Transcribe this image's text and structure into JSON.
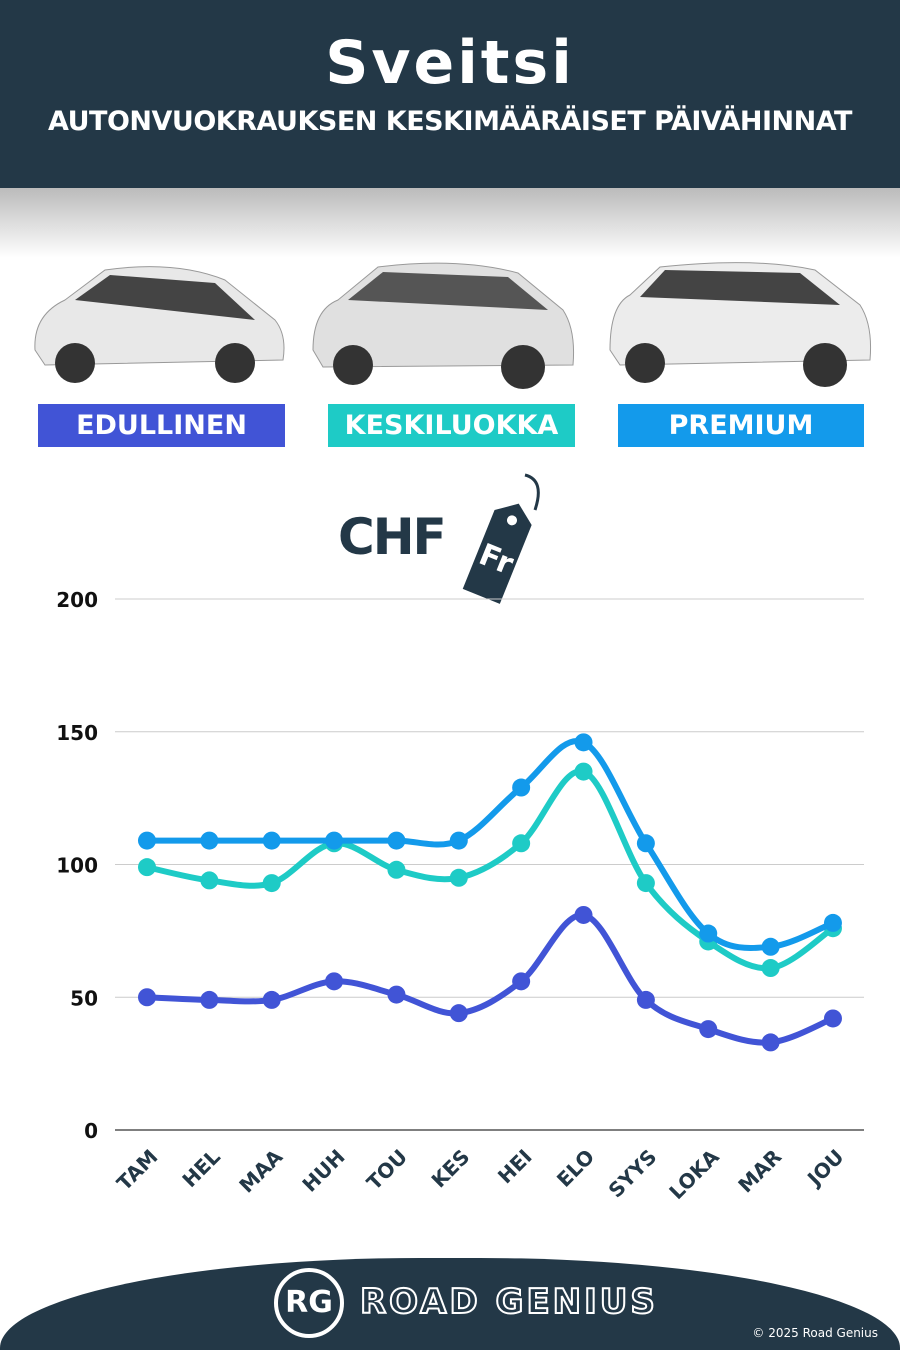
{
  "header": {
    "title": "Sveitsi",
    "subtitle": "AUTONVUOKRAUKSEN KESKIMÄÄRÄISET PÄIVÄHINNAT"
  },
  "currency": {
    "label": "CHF",
    "tag": "Fr"
  },
  "footer": {
    "brand": "ROAD GENIUS",
    "logo": "RG",
    "copyright": "© 2025 Road Genius"
  },
  "chart_data": {
    "type": "line",
    "categories": [
      "TAM",
      "HEL",
      "MAA",
      "HUH",
      "TOU",
      "KES",
      "HEI",
      "ELO",
      "SYYS",
      "LOKA",
      "MAR",
      "JOU"
    ],
    "ylim": [
      0,
      200
    ],
    "yticks": [
      0,
      50,
      100,
      150,
      200
    ],
    "grid": true,
    "legend": "top",
    "series": [
      {
        "name": "EDULLINEN",
        "color": "#4154d6",
        "values": [
          50,
          49,
          49,
          56,
          51,
          44,
          56,
          81,
          49,
          38,
          33,
          42
        ]
      },
      {
        "name": "KESKILUOKKA",
        "color": "#1ecbc6",
        "values": [
          99,
          94,
          93,
          108,
          98,
          95,
          108,
          135,
          93,
          71,
          61,
          76
        ]
      },
      {
        "name": "PREMIUM",
        "color": "#139aeb",
        "values": [
          109,
          109,
          109,
          109,
          109,
          109,
          129,
          146,
          108,
          74,
          69,
          78
        ]
      }
    ]
  }
}
